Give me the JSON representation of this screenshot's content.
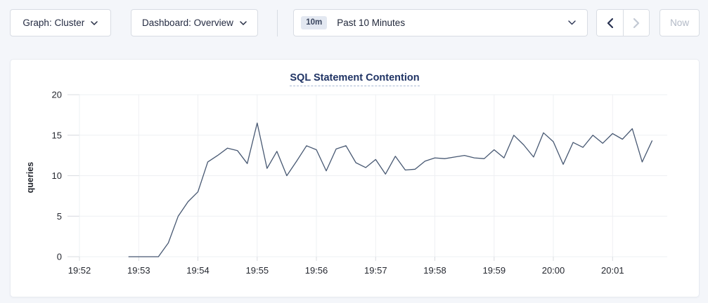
{
  "toolbar": {
    "graph_dropdown": {
      "label": "Graph: Cluster"
    },
    "dashboard_dropdown": {
      "label": "Dashboard: Overview"
    },
    "time_window": {
      "badge": "10m",
      "label": "Past 10 Minutes"
    },
    "now_label": "Now"
  },
  "colors": {
    "accent_navy": "#1f3364",
    "line": "#475872",
    "grid": "#eef0f3",
    "tick_stub": "#d9dce1",
    "disabled": "#c3c9d4",
    "enabled_arrow": "#2a3352",
    "page_bg": "#f4f6fa"
  },
  "chart_data": {
    "type": "line",
    "title": "SQL Statement Contention",
    "xlabel": "",
    "ylabel": "queries",
    "ylim": [
      0,
      20
    ],
    "y_ticks": [
      0,
      5,
      10,
      15,
      20
    ],
    "grid": true,
    "legend_position": "none",
    "x_axis": {
      "tick_seconds": [
        0,
        60,
        120,
        180,
        240,
        300,
        360,
        420,
        480,
        540
      ],
      "labels": [
        "19:52",
        "19:53",
        "19:54",
        "19:55",
        "19:56",
        "19:57",
        "19:58",
        "19:59",
        "20:00",
        "20:01"
      ]
    },
    "series": [
      {
        "name": "queries",
        "color": "#475872",
        "x_seconds": [
          50,
          60,
          70,
          80,
          90,
          100,
          110,
          120,
          130,
          140,
          150,
          160,
          170,
          180,
          190,
          200,
          210,
          220,
          230,
          240,
          250,
          260,
          270,
          280,
          290,
          300,
          310,
          320,
          330,
          340,
          350,
          360,
          370,
          380,
          390,
          400,
          410,
          420,
          430,
          440,
          450,
          460,
          470,
          480,
          490,
          500,
          510,
          520,
          530,
          540,
          550,
          560,
          570,
          580
        ],
        "values": [
          0,
          0,
          0,
          0,
          1.7,
          5.0,
          6.8,
          8.0,
          11.7,
          12.5,
          13.4,
          13.1,
          11.5,
          16.5,
          10.9,
          13.0,
          10.0,
          11.8,
          13.7,
          13.2,
          10.6,
          13.3,
          13.7,
          11.6,
          11.0,
          12.0,
          10.2,
          12.4,
          10.7,
          10.8,
          11.8,
          12.2,
          12.1,
          12.3,
          12.5,
          12.2,
          12.1,
          13.2,
          12.2,
          15.0,
          13.8,
          12.3,
          15.3,
          14.2,
          11.4,
          14.1,
          13.5,
          15.0,
          14.0,
          15.2,
          14.5,
          15.8,
          11.7,
          14.3
        ]
      }
    ]
  }
}
